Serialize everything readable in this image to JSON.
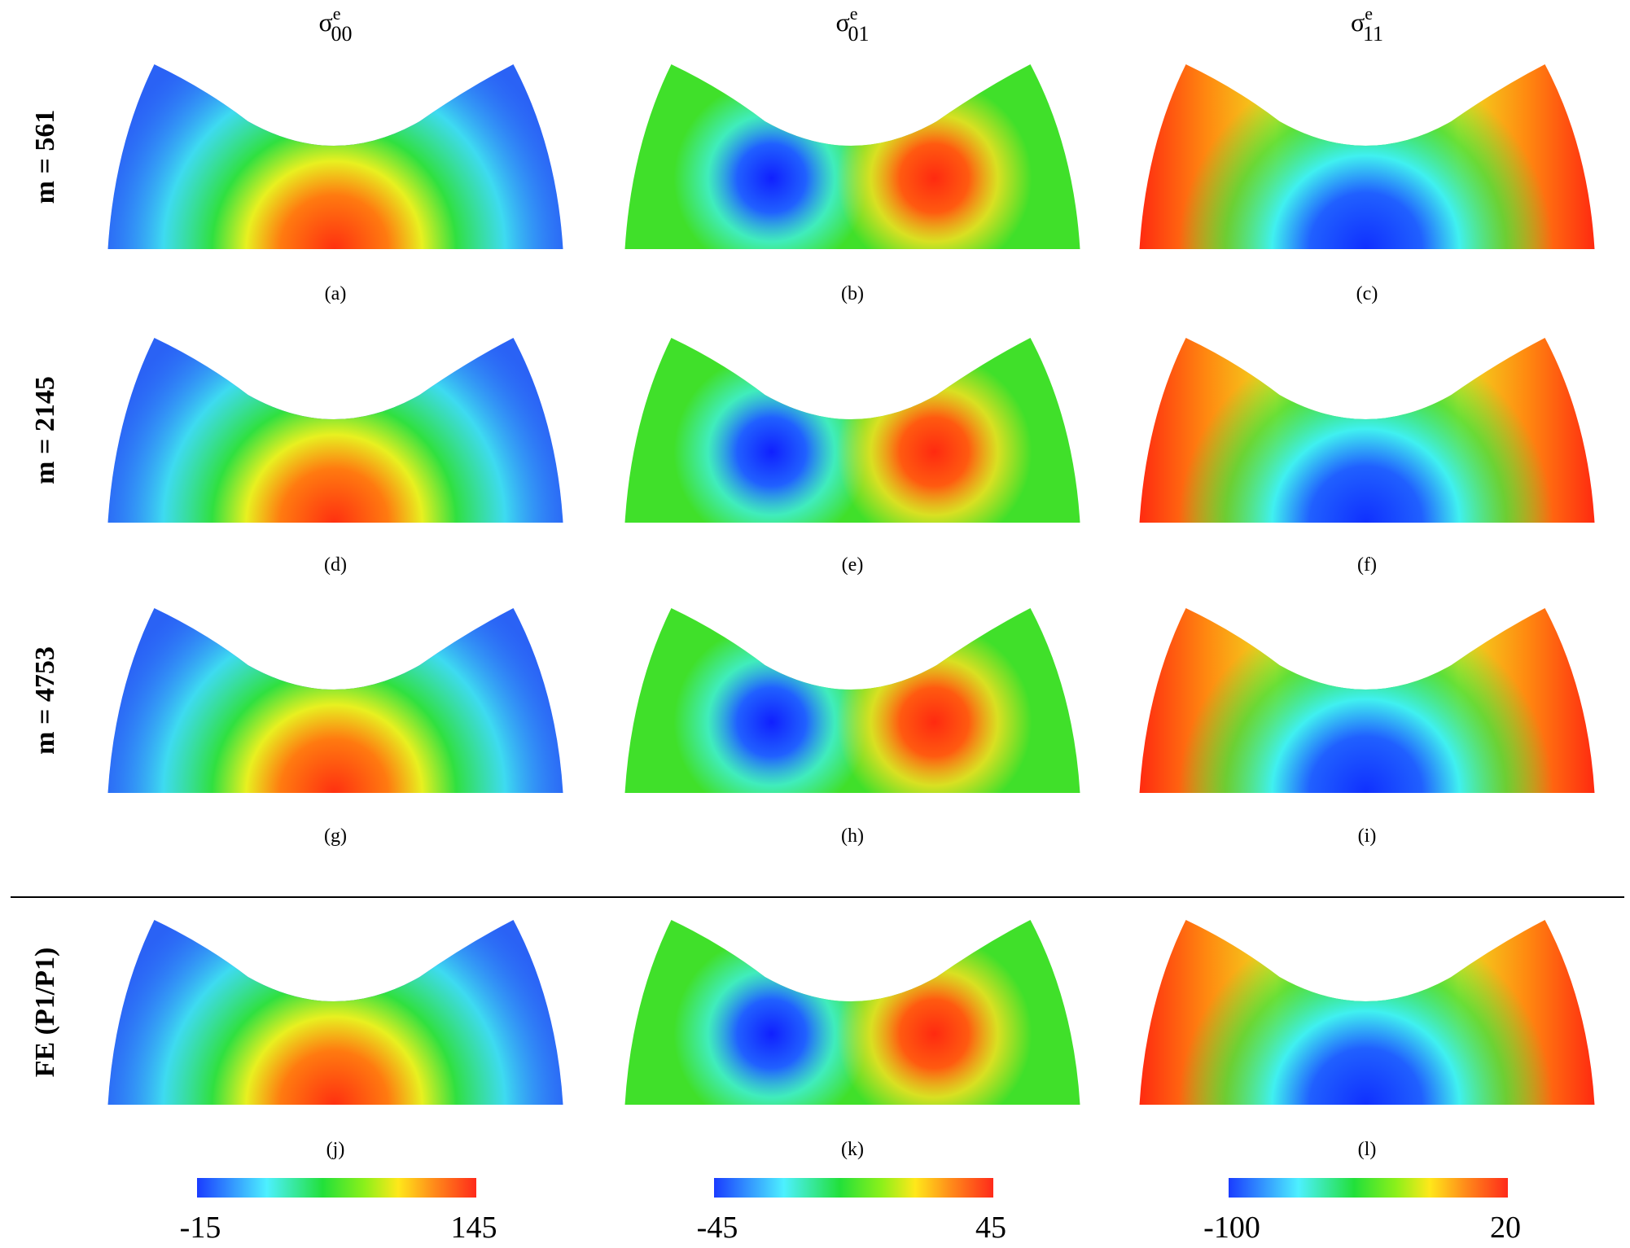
{
  "columns": [
    {
      "symbol": "σ",
      "superscript": "e",
      "subscript": "00",
      "colorbar": {
        "min": -15,
        "max": 145
      }
    },
    {
      "symbol": "σ",
      "superscript": "e",
      "subscript": "01",
      "colorbar": {
        "min": -45,
        "max": 45
      }
    },
    {
      "symbol": "σ",
      "superscript": "e",
      "subscript": "11",
      "colorbar": {
        "min": -100,
        "max": 20
      }
    }
  ],
  "rows": [
    {
      "label": "m = 561",
      "captions": [
        "(a)",
        "(b)",
        "(c)"
      ]
    },
    {
      "label": "m = 2145",
      "captions": [
        "(d)",
        "(e)",
        "(f)"
      ]
    },
    {
      "label": "m = 4753",
      "captions": [
        "(g)",
        "(h)",
        "(i)"
      ]
    },
    {
      "label": "FE (P1/P1)",
      "captions": [
        "(j)",
        "(k)",
        "(l)"
      ]
    }
  ]
}
